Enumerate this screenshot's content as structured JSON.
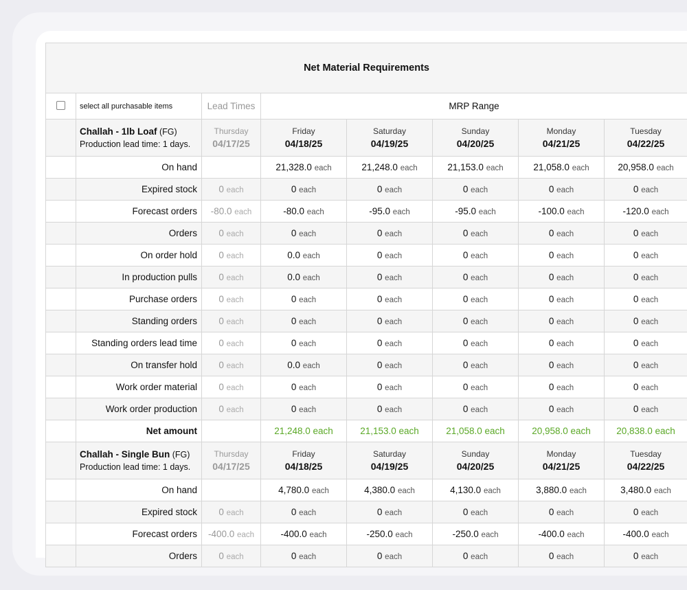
{
  "title": "Net Material Requirements",
  "select_all_label": "select all purchasable items",
  "lead_times_label": "Lead Times",
  "mrp_range_label": "MRP Range",
  "unit": "each",
  "lead_day": {
    "day": "Thursday",
    "date": "04/17/25"
  },
  "days": [
    {
      "day": "Friday",
      "date": "04/18/25"
    },
    {
      "day": "Saturday",
      "date": "04/19/25"
    },
    {
      "day": "Sunday",
      "date": "04/20/25"
    },
    {
      "day": "Monday",
      "date": "04/21/25"
    },
    {
      "day": "Tuesday",
      "date": "04/22/25"
    }
  ],
  "colors": {
    "net": "#5aa826"
  },
  "items": [
    {
      "name": "Challah - 1lb Loaf",
      "type": "(FG)",
      "lead_text": "Production lead time: 1 days.",
      "rows": [
        {
          "label": "On hand",
          "lead": "",
          "values": [
            "21,328.0",
            "21,248.0",
            "21,153.0",
            "21,058.0",
            "20,958.0"
          ]
        },
        {
          "label": "Expired stock",
          "lead": "0",
          "values": [
            "0",
            "0",
            "0",
            "0",
            "0"
          ]
        },
        {
          "label": "Forecast orders",
          "lead": "-80.0",
          "values": [
            "-80.0",
            "-95.0",
            "-95.0",
            "-100.0",
            "-120.0"
          ]
        },
        {
          "label": "Orders",
          "lead": "0",
          "values": [
            "0",
            "0",
            "0",
            "0",
            "0"
          ]
        },
        {
          "label": "On order hold",
          "lead": "0",
          "values": [
            "0.0",
            "0",
            "0",
            "0",
            "0"
          ]
        },
        {
          "label": "In production pulls",
          "lead": "0",
          "values": [
            "0.0",
            "0",
            "0",
            "0",
            "0"
          ]
        },
        {
          "label": "Purchase orders",
          "lead": "0",
          "values": [
            "0",
            "0",
            "0",
            "0",
            "0"
          ]
        },
        {
          "label": "Standing orders",
          "lead": "0",
          "values": [
            "0",
            "0",
            "0",
            "0",
            "0"
          ]
        },
        {
          "label": "Standing orders lead time",
          "lead": "0",
          "values": [
            "0",
            "0",
            "0",
            "0",
            "0"
          ]
        },
        {
          "label": "On transfer hold",
          "lead": "0",
          "values": [
            "0.0",
            "0",
            "0",
            "0",
            "0"
          ]
        },
        {
          "label": "Work order material",
          "lead": "0",
          "values": [
            "0",
            "0",
            "0",
            "0",
            "0"
          ]
        },
        {
          "label": "Work order production",
          "lead": "0",
          "values": [
            "0",
            "0",
            "0",
            "0",
            "0"
          ]
        }
      ],
      "net": {
        "label": "Net amount",
        "values": [
          "21,248.0",
          "21,153.0",
          "21,058.0",
          "20,958.0",
          "20,838.0"
        ]
      }
    },
    {
      "name": "Challah - Single Bun",
      "type": "(FG)",
      "lead_text": "Production lead time: 1 days.",
      "rows": [
        {
          "label": "On hand",
          "lead": "",
          "values": [
            "4,780.0",
            "4,380.0",
            "4,130.0",
            "3,880.0",
            "3,480.0"
          ]
        },
        {
          "label": "Expired stock",
          "lead": "0",
          "values": [
            "0",
            "0",
            "0",
            "0",
            "0"
          ]
        },
        {
          "label": "Forecast orders",
          "lead": "-400.0",
          "values": [
            "-400.0",
            "-250.0",
            "-250.0",
            "-400.0",
            "-400.0"
          ]
        },
        {
          "label": "Orders",
          "lead": "0",
          "values": [
            "0",
            "0",
            "0",
            "0",
            "0"
          ]
        }
      ]
    }
  ]
}
